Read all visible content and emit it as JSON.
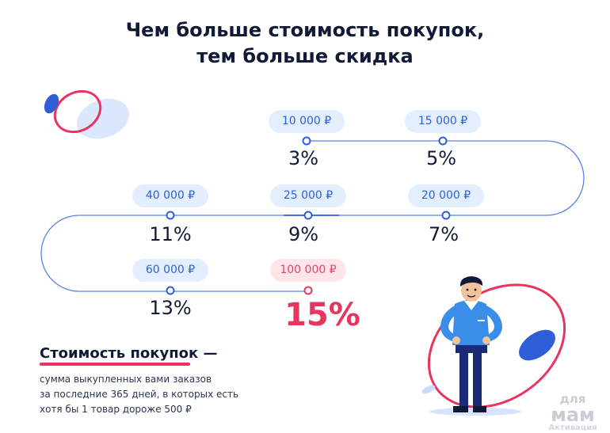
{
  "title": {
    "line1": "Чем больше стоимость покупок,",
    "line2": "тем больше скидка"
  },
  "levels": [
    {
      "amount": "10 000 ₽",
      "discount": "3%"
    },
    {
      "amount": "15 000 ₽",
      "discount": "5%"
    },
    {
      "amount": "20 000 ₽",
      "discount": "7%"
    },
    {
      "amount": "25 000 ₽",
      "discount": "9%"
    },
    {
      "amount": "40 000 ₽",
      "discount": "11%"
    },
    {
      "amount": "60 000 ₽",
      "discount": "13%"
    },
    {
      "amount": "100 000 ₽",
      "discount": "15%"
    }
  ],
  "definition": {
    "title": "Стоимость покупок —",
    "line1": "сумма выкупленных вами заказов",
    "line2": "за последние 365 дней, в которых есть",
    "line3": "хотя бы 1 товар дороже 500 ₽"
  },
  "watermark": {
    "line1": "для",
    "line2": "мам",
    "line3": "Активация"
  },
  "colors": {
    "blue": "#2e5fd8",
    "pink": "#e8355e",
    "pill_blue": "#e3efff",
    "pill_pink": "#fde5ea",
    "dark": "#0f1a36"
  }
}
